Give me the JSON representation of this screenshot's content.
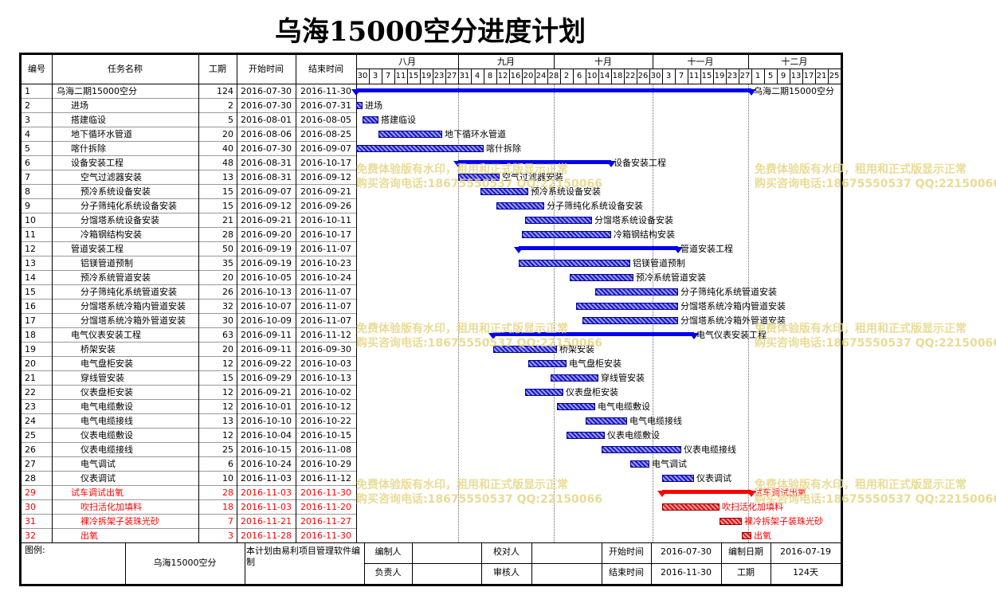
{
  "title": "乌海15000空分进度计划",
  "headers": {
    "id": "编号",
    "name": "任务名称",
    "dur": "工期",
    "start": "开始时间",
    "end": "结束时间"
  },
  "months": [
    "八月",
    "九月",
    "十月",
    "十一月",
    "十二月"
  ],
  "day_ticks": [
    "30",
    "3",
    "7",
    "11",
    "15",
    "19",
    "23",
    "27",
    "31",
    "4",
    "8",
    "12",
    "16",
    "20",
    "24",
    "28",
    "2",
    "6",
    "10",
    "14",
    "18",
    "22",
    "26",
    "30",
    "3",
    "7",
    "11",
    "15",
    "19",
    "23",
    "27",
    "1",
    "5",
    "9",
    "13",
    "17",
    "21",
    "25"
  ],
  "tasks": [
    {
      "id": "1",
      "name": "乌海二期15000空分",
      "dur": "124",
      "start": "2016-07-30",
      "end": "2016-11-30",
      "level": 0,
      "type": "summary",
      "red": false
    },
    {
      "id": "2",
      "name": "进场",
      "dur": "2",
      "start": "2016-07-30",
      "end": "2016-07-31",
      "level": 1,
      "type": "task",
      "red": false
    },
    {
      "id": "3",
      "name": "搭建临设",
      "dur": "5",
      "start": "2016-08-01",
      "end": "2016-08-05",
      "level": 1,
      "type": "task",
      "red": false
    },
    {
      "id": "4",
      "name": "地下循环水管道",
      "dur": "20",
      "start": "2016-08-06",
      "end": "2016-08-25",
      "level": 1,
      "type": "task",
      "red": false
    },
    {
      "id": "5",
      "name": "喀什拆除",
      "dur": "40",
      "start": "2016-07-30",
      "end": "2016-09-07",
      "level": 1,
      "type": "task",
      "red": false
    },
    {
      "id": "6",
      "name": "设备安装工程",
      "dur": "48",
      "start": "2016-08-31",
      "end": "2016-10-17",
      "level": 1,
      "type": "summary",
      "red": false
    },
    {
      "id": "7",
      "name": "空气过滤器安装",
      "dur": "13",
      "start": "2016-08-31",
      "end": "2016-09-12",
      "level": 2,
      "type": "task",
      "red": false
    },
    {
      "id": "8",
      "name": "预冷系统设备安装",
      "dur": "15",
      "start": "2016-09-07",
      "end": "2016-09-21",
      "level": 2,
      "type": "task",
      "red": false
    },
    {
      "id": "9",
      "name": "分子筛纯化系统设备安装",
      "dur": "15",
      "start": "2016-09-12",
      "end": "2016-09-26",
      "level": 2,
      "type": "task",
      "red": false
    },
    {
      "id": "10",
      "name": "分馏塔系统设备安装",
      "dur": "21",
      "start": "2016-09-21",
      "end": "2016-10-11",
      "level": 2,
      "type": "task",
      "red": false
    },
    {
      "id": "11",
      "name": "冷箱钢结构安装",
      "dur": "28",
      "start": "2016-09-20",
      "end": "2016-10-17",
      "level": 2,
      "type": "task",
      "red": false
    },
    {
      "id": "12",
      "name": "管道安装工程",
      "dur": "50",
      "start": "2016-09-19",
      "end": "2016-11-07",
      "level": 1,
      "type": "summary",
      "red": false
    },
    {
      "id": "13",
      "name": "铝镁管道预制",
      "dur": "35",
      "start": "2016-09-19",
      "end": "2016-10-23",
      "level": 2,
      "type": "task",
      "red": false
    },
    {
      "id": "14",
      "name": "预冷系统管道安装",
      "dur": "20",
      "start": "2016-10-05",
      "end": "2016-10-24",
      "level": 2,
      "type": "task",
      "red": false
    },
    {
      "id": "15",
      "name": "分子筛纯化系统管道安装",
      "dur": "26",
      "start": "2016-10-13",
      "end": "2016-11-07",
      "level": 2,
      "type": "task",
      "red": false
    },
    {
      "id": "16",
      "name": "分馏塔系统冷箱内管道安装",
      "dur": "32",
      "start": "2016-10-07",
      "end": "2016-11-07",
      "level": 2,
      "type": "task",
      "red": false
    },
    {
      "id": "17",
      "name": "分馏塔系统冷箱外管道安装",
      "dur": "30",
      "start": "2016-10-09",
      "end": "2016-11-07",
      "level": 2,
      "type": "task",
      "red": false
    },
    {
      "id": "18",
      "name": "电气仪表安装工程",
      "dur": "63",
      "start": "2016-09-11",
      "end": "2016-11-12",
      "level": 1,
      "type": "summary",
      "red": false
    },
    {
      "id": "19",
      "name": "桥架安装",
      "dur": "20",
      "start": "2016-09-11",
      "end": "2016-09-30",
      "level": 2,
      "type": "task",
      "red": false
    },
    {
      "id": "20",
      "name": "电气盘柜安装",
      "dur": "12",
      "start": "2016-09-22",
      "end": "2016-10-03",
      "level": 2,
      "type": "task",
      "red": false
    },
    {
      "id": "21",
      "name": "穿线管安装",
      "dur": "15",
      "start": "2016-09-29",
      "end": "2016-10-13",
      "level": 2,
      "type": "task",
      "red": false
    },
    {
      "id": "22",
      "name": "仪表盘柜安装",
      "dur": "12",
      "start": "2016-09-21",
      "end": "2016-10-02",
      "level": 2,
      "type": "task",
      "red": false
    },
    {
      "id": "23",
      "name": "电气电缆敷设",
      "dur": "12",
      "start": "2016-10-01",
      "end": "2016-10-12",
      "level": 2,
      "type": "task",
      "red": false
    },
    {
      "id": "24",
      "name": "电气电缆接线",
      "dur": "13",
      "start": "2016-10-10",
      "end": "2016-10-22",
      "level": 2,
      "type": "task",
      "red": false
    },
    {
      "id": "25",
      "name": "仪表电缆敷设",
      "dur": "12",
      "start": "2016-10-04",
      "end": "2016-10-15",
      "level": 2,
      "type": "task",
      "red": false
    },
    {
      "id": "26",
      "name": "仪表电缆接线",
      "dur": "25",
      "start": "2016-10-15",
      "end": "2016-11-08",
      "level": 2,
      "type": "task",
      "red": false
    },
    {
      "id": "27",
      "name": "电气调试",
      "dur": "6",
      "start": "2016-10-24",
      "end": "2016-10-29",
      "level": 2,
      "type": "task",
      "red": false
    },
    {
      "id": "28",
      "name": "仪表调试",
      "dur": "10",
      "start": "2016-11-03",
      "end": "2016-11-12",
      "level": 2,
      "type": "task",
      "red": false
    },
    {
      "id": "29",
      "name": "试车调试出氧",
      "dur": "28",
      "start": "2016-11-03",
      "end": "2016-11-30",
      "level": 1,
      "type": "summary",
      "red": true
    },
    {
      "id": "30",
      "name": "吹扫活化加填料",
      "dur": "18",
      "start": "2016-11-03",
      "end": "2016-11-20",
      "level": 2,
      "type": "task",
      "red": true
    },
    {
      "id": "31",
      "name": "裸冷拆架子装珠光砂",
      "dur": "7",
      "start": "2016-11-21",
      "end": "2016-11-27",
      "level": 2,
      "type": "task",
      "red": true
    },
    {
      "id": "32",
      "name": "出氧",
      "dur": "3",
      "start": "2016-11-28",
      "end": "2016-11-30",
      "level": 2,
      "type": "task",
      "red": true
    }
  ],
  "footer": {
    "legend_label": "图例:",
    "project_name": "乌海15000空分",
    "software_note": "本计划由易利项目管理软件编制",
    "compiler_label": "编制人",
    "checker_label": "校对人",
    "start_label": "开始时间",
    "start_value": "2016-07-30",
    "compile_date_label": "编制日期",
    "compile_date_value": "2016-07-19",
    "owner_label": "负责人",
    "reviewer_label": "审核人",
    "end_label": "结束时间",
    "end_value": "2016-11-30",
    "duration_label": "工期",
    "duration_value": "124天"
  },
  "watermark": {
    "line1": "免费体验版有水印，租用和正式版显示正常",
    "line2": "购买咨询电话:18675550537 QQ:22150066"
  },
  "colors": {
    "bar_blue": "#1a1acc",
    "summary_blue": "#0000ee",
    "critical_red": "#ff0000",
    "watermark": "#e7d88b"
  }
}
